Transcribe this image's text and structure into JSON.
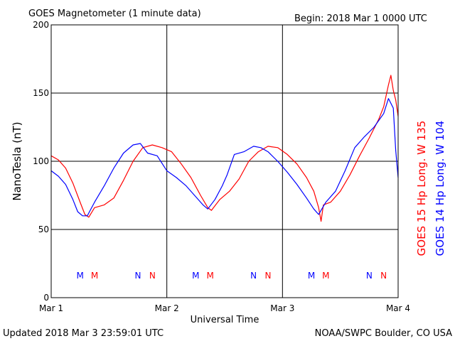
{
  "header": {
    "title": "GOES Magnetometer (1 minute data)",
    "begin": "Begin:  2018 Mar 1 0000 UTC"
  },
  "footer": {
    "updated": "Updated 2018 Mar  3 23:59:01 UTC",
    "source": "NOAA/SWPC Boulder, CO USA"
  },
  "colors": {
    "goes15": "#ff0000",
    "goes14": "#0000ff",
    "grid": "#000000",
    "background": "#ffffff"
  },
  "chart_data": {
    "type": "line",
    "title": "GOES Magnetometer (1 minute data)",
    "xlabel": "Universal Time",
    "ylabel": "NanoTesla (nT)",
    "xlim": [
      "2018-03-01T00:00",
      "2018-03-04T00:00"
    ],
    "ylim": [
      0,
      200
    ],
    "yticks": [
      0,
      50,
      100,
      150,
      200
    ],
    "xtick_labels": [
      "Mar 1",
      "Mar 2",
      "Mar 3",
      "Mar 4"
    ],
    "grid": true,
    "legend_position": "right, rotated vertical",
    "series": [
      {
        "name": "GOES 15 Hp  Long. W 135",
        "color": "#ff0000",
        "points": [
          [
            "2018-03-01T00:00",
            104
          ],
          [
            "2018-03-01T01:30",
            101
          ],
          [
            "2018-03-01T03:00",
            95
          ],
          [
            "2018-03-01T04:30",
            84
          ],
          [
            "2018-03-01T06:00",
            70
          ],
          [
            "2018-03-01T07:00",
            61
          ],
          [
            "2018-03-01T07:48",
            59
          ],
          [
            "2018-03-01T09:00",
            66
          ],
          [
            "2018-03-01T11:00",
            68
          ],
          [
            "2018-03-01T13:00",
            73
          ],
          [
            "2018-03-01T15:00",
            86
          ],
          [
            "2018-03-01T17:00",
            100
          ],
          [
            "2018-03-01T19:00",
            110
          ],
          [
            "2018-03-01T21:00",
            112
          ],
          [
            "2018-03-01T23:00",
            110
          ],
          [
            "2018-03-02T01:00",
            107
          ],
          [
            "2018-03-02T03:00",
            98
          ],
          [
            "2018-03-02T05:00",
            88
          ],
          [
            "2018-03-02T07:00",
            75
          ],
          [
            "2018-03-02T08:30",
            66
          ],
          [
            "2018-03-02T09:15",
            64
          ],
          [
            "2018-03-02T11:00",
            72
          ],
          [
            "2018-03-02T13:00",
            78
          ],
          [
            "2018-03-02T15:00",
            87
          ],
          [
            "2018-03-02T17:00",
            100
          ],
          [
            "2018-03-02T19:00",
            107
          ],
          [
            "2018-03-02T21:00",
            111
          ],
          [
            "2018-03-02T23:00",
            110
          ],
          [
            "2018-03-03T01:00",
            105
          ],
          [
            "2018-03-03T03:00",
            98
          ],
          [
            "2018-03-03T05:00",
            88
          ],
          [
            "2018-03-03T06:30",
            78
          ],
          [
            "2018-03-03T07:30",
            66
          ],
          [
            "2018-03-03T08:00",
            56
          ],
          [
            "2018-03-03T08:30",
            68
          ],
          [
            "2018-03-03T10:00",
            70
          ],
          [
            "2018-03-03T12:00",
            78
          ],
          [
            "2018-03-03T14:00",
            90
          ],
          [
            "2018-03-03T16:00",
            104
          ],
          [
            "2018-03-03T18:00",
            117
          ],
          [
            "2018-03-03T20:00",
            131
          ],
          [
            "2018-03-03T21:00",
            140
          ],
          [
            "2018-03-03T22:00",
            156
          ],
          [
            "2018-03-03T22:30",
            163
          ],
          [
            "2018-03-03T23:00",
            152
          ],
          [
            "2018-03-03T23:30",
            145
          ],
          [
            "2018-03-04T00:00",
            133
          ]
        ]
      },
      {
        "name": "GOES 14 Hp  Long. W 104",
        "color": "#0000ff",
        "points": [
          [
            "2018-03-01T00:00",
            93
          ],
          [
            "2018-03-01T01:30",
            89
          ],
          [
            "2018-03-01T03:00",
            83
          ],
          [
            "2018-03-01T04:30",
            72
          ],
          [
            "2018-03-01T05:30",
            63
          ],
          [
            "2018-03-01T06:30",
            60
          ],
          [
            "2018-03-01T07:30",
            60
          ],
          [
            "2018-03-01T09:00",
            70
          ],
          [
            "2018-03-01T11:00",
            82
          ],
          [
            "2018-03-01T13:00",
            95
          ],
          [
            "2018-03-01T15:00",
            106
          ],
          [
            "2018-03-01T17:00",
            112
          ],
          [
            "2018-03-01T18:30",
            113
          ],
          [
            "2018-03-01T20:00",
            106
          ],
          [
            "2018-03-01T22:00",
            104
          ],
          [
            "2018-03-02T00:00",
            93
          ],
          [
            "2018-03-02T02:00",
            88
          ],
          [
            "2018-03-02T04:00",
            82
          ],
          [
            "2018-03-02T06:00",
            74
          ],
          [
            "2018-03-02T07:30",
            68
          ],
          [
            "2018-03-02T08:30",
            65
          ],
          [
            "2018-03-02T10:00",
            72
          ],
          [
            "2018-03-02T11:30",
            82
          ],
          [
            "2018-03-02T12:30",
            90
          ],
          [
            "2018-03-02T14:00",
            105
          ],
          [
            "2018-03-02T16:00",
            107
          ],
          [
            "2018-03-02T18:00",
            111
          ],
          [
            "2018-03-02T19:30",
            110
          ],
          [
            "2018-03-02T21:00",
            107
          ],
          [
            "2018-03-02T23:00",
            100
          ],
          [
            "2018-03-03T01:00",
            92
          ],
          [
            "2018-03-03T03:00",
            83
          ],
          [
            "2018-03-03T05:00",
            73
          ],
          [
            "2018-03-03T06:30",
            65
          ],
          [
            "2018-03-03T07:30",
            61
          ],
          [
            "2018-03-03T09:00",
            70
          ],
          [
            "2018-03-03T11:00",
            78
          ],
          [
            "2018-03-03T13:00",
            93
          ],
          [
            "2018-03-03T15:00",
            110
          ],
          [
            "2018-03-03T17:00",
            118
          ],
          [
            "2018-03-03T19:00",
            125
          ],
          [
            "2018-03-03T21:00",
            135
          ],
          [
            "2018-03-03T22:00",
            146
          ],
          [
            "2018-03-03T23:00",
            139
          ],
          [
            "2018-03-03T23:30",
            108
          ],
          [
            "2018-03-04T00:00",
            88
          ]
        ]
      }
    ],
    "markers": [
      {
        "label": "M",
        "time": "2018-03-01T06:00",
        "color": "#0000ff"
      },
      {
        "label": "M",
        "time": "2018-03-01T09:00",
        "color": "#ff0000"
      },
      {
        "label": "N",
        "time": "2018-03-01T18:00",
        "color": "#0000ff"
      },
      {
        "label": "N",
        "time": "2018-03-01T21:00",
        "color": "#ff0000"
      },
      {
        "label": "M",
        "time": "2018-03-02T06:00",
        "color": "#0000ff"
      },
      {
        "label": "M",
        "time": "2018-03-02T09:00",
        "color": "#ff0000"
      },
      {
        "label": "N",
        "time": "2018-03-02T18:00",
        "color": "#0000ff"
      },
      {
        "label": "N",
        "time": "2018-03-02T21:00",
        "color": "#ff0000"
      },
      {
        "label": "M",
        "time": "2018-03-03T06:00",
        "color": "#0000ff"
      },
      {
        "label": "M",
        "time": "2018-03-03T09:00",
        "color": "#ff0000"
      },
      {
        "label": "N",
        "time": "2018-03-03T18:00",
        "color": "#0000ff"
      },
      {
        "label": "N",
        "time": "2018-03-03T21:00",
        "color": "#ff0000"
      }
    ]
  }
}
